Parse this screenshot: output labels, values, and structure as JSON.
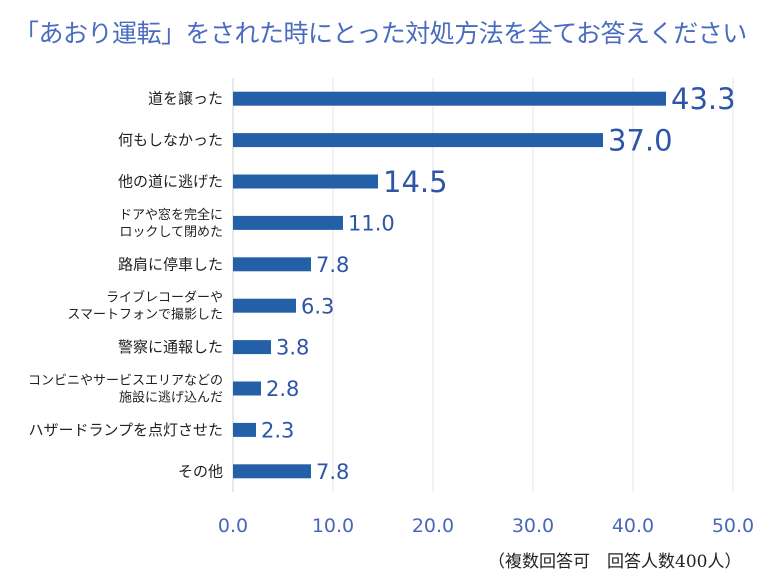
{
  "chart_data": {
    "type": "bar",
    "orientation": "horizontal",
    "title": "「あおり運転」をされた時にとった対処方法を全てお答えください",
    "categories": [
      [
        "道を譲った"
      ],
      [
        "何もしなかった"
      ],
      [
        "他の道に逃げた"
      ],
      [
        "ドアや窓を完全に",
        "ロックして閉めた"
      ],
      [
        "路肩に停車した"
      ],
      [
        "ライブレコーダーや",
        "スマートフォンで撮影した"
      ],
      [
        "警察に通報した"
      ],
      [
        "コンビニやサービスエリアなどの",
        "施設に逃げ込んだ"
      ],
      [
        "ハザードランプを点灯させた"
      ],
      [
        "その他"
      ]
    ],
    "values": [
      43.3,
      37.0,
      14.5,
      11.0,
      7.8,
      6.3,
      3.8,
      2.8,
      2.3,
      7.8
    ],
    "value_labels": [
      "43.3",
      "37.0",
      "14.5",
      "11.0",
      "7.8",
      "6.3",
      "3.8",
      "2.8",
      "2.3",
      "7.8"
    ],
    "xlim": [
      0,
      50
    ],
    "xticks": [
      "0.0",
      "10.0",
      "20.0",
      "30.0",
      "40.0",
      "50.0"
    ],
    "grid": true,
    "bar_color": "#2460a7",
    "note": "（複数回答可　回答人数400人）"
  }
}
